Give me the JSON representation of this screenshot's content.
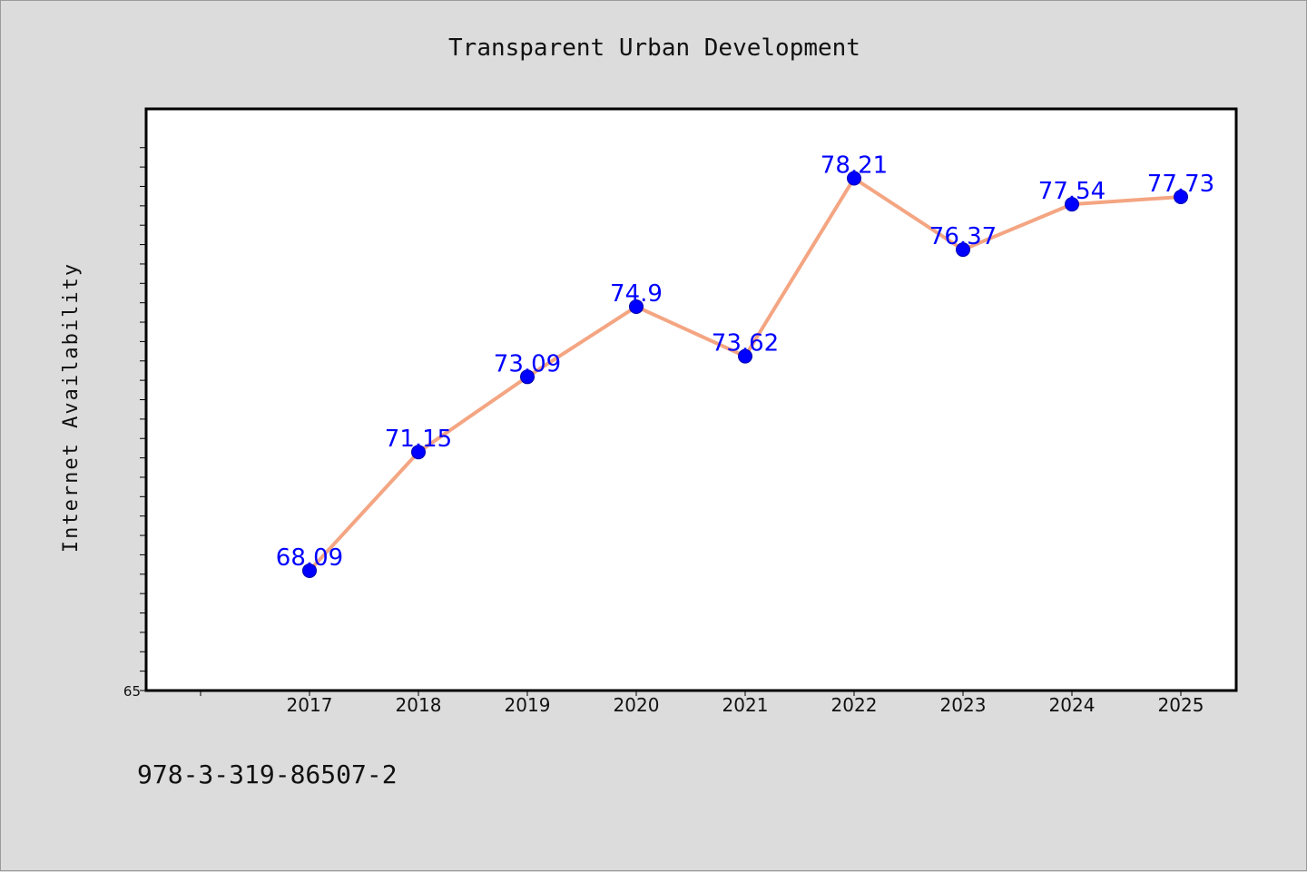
{
  "chart_data": {
    "type": "line",
    "title": "Transparent Urban Development",
    "xlabel": "",
    "ylabel": "Internet Availability",
    "categories": [
      "2017",
      "2018",
      "2019",
      "2020",
      "2021",
      "2022",
      "2023",
      "2024",
      "2025"
    ],
    "series": [
      {
        "values": [
          68.09,
          71.15,
          73.09,
          74.9,
          73.62,
          78.21,
          76.37,
          77.54,
          77.73
        ],
        "data_labels": [
          "68.09",
          "71.15",
          "73.09",
          "74.9",
          "73.62",
          "78.21",
          "76.37",
          "77.54",
          "77.73"
        ]
      }
    ],
    "ylim": [
      65,
      80
    ],
    "y_tick_labels": [
      "65"
    ],
    "grid": false,
    "legend": "none",
    "colors": {
      "line": "#f4a582",
      "marker": "#0000ff",
      "data_label": "#0000ff",
      "plot_background": "#ffffff",
      "figure_background": "#dcdcdc"
    }
  },
  "footer": {
    "isbn": "978-3-319-86507-2"
  }
}
